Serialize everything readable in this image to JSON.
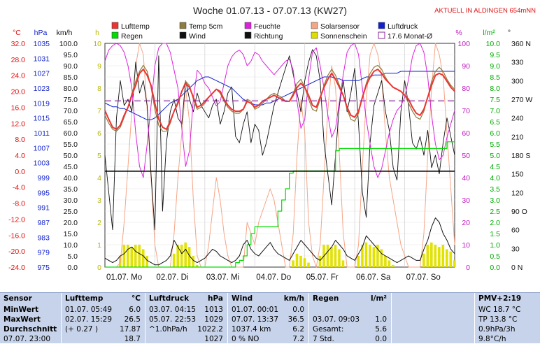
{
  "header": {
    "title": "Woche 01.07.13 - 07.07.13 (KW27)",
    "status": "AKTUELL IN ALDINGEN 654mNN"
  },
  "units": {
    "temp": "°C",
    "hpa": "hPa",
    "kmh": "km/h",
    "h": "h",
    "pct": "%",
    "lm2": "l/m²",
    "deg": "°"
  },
  "legend": [
    {
      "label": "Lufttemp",
      "color": "#ee3333"
    },
    {
      "label": "Temp 5cm",
      "color": "#8d7d3e"
    },
    {
      "label": "Feuchte",
      "color": "#dd22dd"
    },
    {
      "label": "Solarsensor",
      "color": "#f5a585"
    },
    {
      "label": "Luftdruck",
      "color": "#1122cc"
    },
    {
      "label": "Regen",
      "color": "#00dd00"
    },
    {
      "label": "Wind",
      "color": "#111111"
    },
    {
      "label": "Richtung",
      "color": "#111111"
    },
    {
      "label": "Sonnenschein",
      "color": "#dddd00"
    },
    {
      "label": "17.6 Monat-Ø",
      "color": "#8a2a9a"
    }
  ],
  "chart_data": {
    "type": "line",
    "title": "Woche 01.07.13 - 07.07.13 (KW27)",
    "x_ticks": [
      "01.07. Mo",
      "02.07. Di",
      "03.07. Mi",
      "04.07. Do",
      "05.07. Fr",
      "06.07. Sa",
      "07.07. So"
    ],
    "axes": {
      "temp_c": [
        "32.0",
        "28.0",
        "24.0",
        "20.0",
        "16.0",
        "12.0",
        "8.0",
        "4.0",
        "0.0",
        "-4.0",
        "-8.0",
        "-12.0",
        "-16.0",
        "-20.0",
        "-24.0"
      ],
      "pressure_hpa": [
        "1035",
        "1031",
        "1027",
        "1023",
        "1019",
        "1015",
        "1011",
        "1007",
        "1003",
        "999",
        "995",
        "991",
        "987",
        "983",
        "979",
        "975"
      ],
      "wind_kmh": [
        "100.0",
        "95.0",
        "90.0",
        "85.0",
        "80.0",
        "75.0",
        "70.0",
        "65.0",
        "60.0",
        "55.0",
        "50.0",
        "45.0",
        "40.0",
        "35.0",
        "30.0",
        "25.0",
        "20.0",
        "15.0",
        "10.0",
        "5.0",
        "0.0"
      ],
      "sun_h": [
        "10",
        "9",
        "8",
        "7",
        "6",
        "5",
        "4",
        "3",
        "2",
        "1",
        "0"
      ],
      "humidity_pct": [
        "100",
        "90",
        "80",
        "70",
        "60",
        "50",
        "40",
        "30",
        "20",
        "10",
        "0"
      ],
      "rain_lm2": [
        "10.0",
        "9.5",
        "9.0",
        "8.5",
        "8.0",
        "7.5",
        "7.0",
        "6.5",
        "6.0",
        "5.5",
        "5.0",
        "4.5",
        "4.0",
        "3.5",
        "3.0",
        "2.5",
        "2.0",
        "1.5",
        "1.0",
        "0.5",
        "0.0"
      ],
      "direction": [
        "360 N",
        "330",
        "300",
        "270 W",
        "240",
        "210",
        "180 S",
        "150",
        "120",
        "90 O",
        "60",
        "30",
        "0 N"
      ]
    },
    "ranges": {
      "temp_c": [
        -24,
        32
      ],
      "pressure_hpa": [
        975,
        1035
      ],
      "wind_kmh": [
        0,
        100
      ],
      "sun_h": [
        0,
        10
      ],
      "humidity_pct": [
        0,
        100
      ],
      "rain_lm2": [
        0,
        10
      ],
      "direction_deg": [
        0,
        360
      ]
    },
    "series": [
      {
        "name": "Lufttemp",
        "axis": "temp_c",
        "values": [
          15.2,
          13.0,
          11.0,
          10.5,
          11.5,
          14.0,
          16.0,
          19.0,
          21.5,
          24.5,
          25.5,
          24.0,
          21.5,
          17.0,
          13.0,
          11.0,
          10.5,
          12.5,
          15.0,
          17.0,
          20.0,
          22.0,
          21.0,
          18.5,
          16.0,
          16.5,
          17.5,
          18.5,
          19.5,
          20.5,
          20.0,
          18.0,
          16.5,
          15.5,
          15.0,
          15.0,
          15.5,
          17.5,
          17.0,
          16.0,
          16.5,
          17.5,
          18.0,
          18.5,
          19.0,
          18.5,
          18.0,
          17.5,
          17.5,
          19.0,
          21.0,
          22.0,
          21.0,
          19.0,
          16.5,
          16.0,
          18.5,
          21.0,
          23.0,
          24.5,
          23.0,
          21.0,
          19.0,
          16.0,
          14.0,
          13.5,
          15.0,
          18.5,
          21.5,
          23.5,
          25.0,
          25.5,
          24.5,
          23.0,
          22.0,
          21.0,
          20.5,
          20.0,
          19.0,
          18.0,
          16.0,
          14.5,
          14.0,
          15.5,
          18.5,
          21.5,
          24.0,
          24.5,
          24.0,
          22.5,
          21.0,
          20.0
        ]
      },
      {
        "name": "Temp 5cm",
        "axis": "temp_c",
        "values": [
          14.0,
          12.0,
          10.5,
          10.0,
          11.0,
          13.5,
          16.0,
          19.5,
          22.5,
          25.0,
          26.5,
          25.0,
          21.0,
          15.5,
          11.5,
          10.0,
          10.0,
          12.0,
          15.0,
          17.5,
          20.0,
          22.5,
          21.5,
          18.0,
          15.5,
          16.0,
          17.0,
          18.5,
          19.5,
          20.5,
          19.5,
          17.5,
          16.0,
          15.0,
          14.5,
          14.5,
          15.5,
          18.0,
          17.5,
          15.5,
          16.0,
          17.0,
          18.0,
          19.0,
          19.5,
          19.0,
          18.5,
          17.5,
          17.5,
          19.5,
          22.0,
          23.0,
          21.0,
          18.0,
          15.5,
          15.0,
          18.0,
          21.5,
          24.0,
          25.5,
          24.0,
          21.5,
          19.0,
          15.5,
          13.0,
          12.5,
          14.5,
          18.5,
          22.0,
          24.5,
          26.0,
          26.5,
          25.5,
          23.5,
          22.0,
          21.0,
          20.5,
          20.0,
          19.0,
          17.0,
          15.0,
          13.5,
          13.0,
          15.0,
          18.5,
          22.5,
          25.0,
          26.0,
          25.0,
          23.0,
          21.5,
          20.5
        ]
      },
      {
        "name": "Feuchte",
        "axis": "humidity_pct",
        "values": [
          92,
          97,
          99,
          100,
          99,
          96,
          90,
          80,
          60,
          45,
          40,
          55,
          72,
          90,
          98,
          100,
          100,
          96,
          88,
          80,
          62,
          45,
          52,
          75,
          88,
          86,
          82,
          80,
          76,
          72,
          74,
          82,
          90,
          94,
          96,
          97,
          95,
          90,
          92,
          96,
          95,
          92,
          90,
          88,
          86,
          88,
          90,
          92,
          93,
          88,
          74,
          62,
          66,
          84,
          96,
          98,
          90,
          80,
          68,
          58,
          62,
          74,
          86,
          96,
          99,
          100,
          95,
          80,
          66,
          55,
          45,
          40,
          44,
          52,
          60,
          66,
          70,
          72,
          76,
          84,
          94,
          99,
          100,
          96,
          85,
          68,
          55,
          48,
          50,
          58,
          64,
          70
        ]
      },
      {
        "name": "Solarsensor",
        "axis": "humidity_pct",
        "values": [
          0,
          0,
          0,
          0,
          2,
          20,
          45,
          70,
          90,
          100,
          95,
          70,
          40,
          10,
          0,
          0,
          0,
          0,
          15,
          40,
          60,
          80,
          65,
          30,
          5,
          0,
          0,
          10,
          25,
          40,
          30,
          15,
          5,
          0,
          0,
          0,
          0,
          20,
          15,
          10,
          20,
          25,
          30,
          35,
          30,
          20,
          10,
          0,
          0,
          15,
          50,
          75,
          60,
          20,
          5,
          0,
          10,
          40,
          70,
          90,
          80,
          50,
          15,
          0,
          0,
          0,
          10,
          45,
          75,
          95,
          100,
          95,
          85,
          60,
          40,
          30,
          20,
          10,
          5,
          0,
          0,
          0,
          0,
          15,
          50,
          80,
          100,
          95,
          85,
          60,
          35,
          10
        ]
      },
      {
        "name": "Luftdruck",
        "axis": "pressure_hpa",
        "values": [
          1019,
          1018.5,
          1018,
          1018,
          1017.5,
          1017.5,
          1017,
          1016.5,
          1016,
          1015.5,
          1015,
          1014.5,
          1014.5,
          1015,
          1016,
          1017,
          1018,
          1019,
          1019.5,
          1020,
          1021,
          1022,
          1023,
          1024,
          1025,
          1025.5,
          1026,
          1026,
          1025.5,
          1025,
          1024.5,
          1024,
          1023.5,
          1023,
          1022,
          1021,
          1020,
          1019.5,
          1019,
          1018.5,
          1018.5,
          1018.5,
          1019,
          1019,
          1019.5,
          1020,
          1020.5,
          1021,
          1021.5,
          1022,
          1022.5,
          1023,
          1023.5,
          1024,
          1024.5,
          1025,
          1025.5,
          1026,
          1026,
          1026,
          1025.5,
          1025.5,
          1025,
          1025,
          1025,
          1025,
          1025,
          1025.5,
          1026,
          1026,
          1026.5,
          1026.5,
          1026.5,
          1027,
          1027,
          1027,
          1027,
          1027.5,
          1027.5,
          1027.5,
          1027.5,
          1027.5,
          1027.5,
          1027.5,
          1027.5,
          1027.5,
          1027.5,
          1027.5,
          1027.5,
          1027.5,
          1027.5,
          1027.5
        ]
      },
      {
        "name": "Wind",
        "axis": "wind_kmh",
        "values": [
          4,
          3,
          2,
          3,
          5,
          6,
          8,
          9,
          7,
          6,
          5,
          3,
          2,
          1,
          1,
          2,
          3,
          5,
          12,
          9,
          6,
          8,
          5,
          3,
          2,
          3,
          4,
          6,
          8,
          7,
          5,
          4,
          3,
          2,
          3,
          5,
          10,
          12,
          8,
          6,
          5,
          7,
          9,
          11,
          8,
          6,
          5,
          4,
          3,
          6,
          9,
          12,
          10,
          8,
          6,
          4,
          3,
          5,
          7,
          9,
          12,
          10,
          8,
          5,
          4,
          3,
          6,
          9,
          14,
          12,
          10,
          8,
          6,
          5,
          4,
          3,
          2,
          3,
          4,
          5,
          4,
          3,
          3,
          8,
          12,
          18,
          22,
          20,
          15,
          12,
          8,
          6
        ]
      },
      {
        "name": "Richtung",
        "axis": "direction_deg",
        "values": [
          180,
          120,
          60,
          240,
          300,
          260,
          270,
          250,
          330,
          280,
          300,
          260,
          150,
          60,
          340,
          90,
          200,
          250,
          270,
          240,
          230,
          300,
          270,
          250,
          280,
          260,
          250,
          240,
          260,
          270,
          230,
          250,
          280,
          290,
          210,
          200,
          230,
          250,
          200,
          230,
          220,
          180,
          200,
          230,
          260,
          280,
          300,
          320,
          340,
          310,
          280,
          250,
          300,
          330,
          350,
          340,
          300,
          200,
          150,
          100,
          180,
          260,
          300,
          250,
          280,
          320,
          230,
          120,
          80,
          200,
          260,
          280,
          300,
          250,
          220,
          160,
          140,
          250,
          300,
          260,
          200,
          190,
          210,
          180,
          220,
          160,
          180,
          150,
          200,
          240,
          210,
          180
        ]
      },
      {
        "name": "Regen",
        "axis": "rain_lm2",
        "values": [
          0,
          0,
          0,
          0,
          0,
          0,
          0,
          0,
          0,
          0,
          0,
          0,
          0,
          0,
          0,
          0,
          0,
          0,
          0,
          0,
          0,
          0,
          0,
          0,
          0,
          0,
          0,
          0,
          0,
          0,
          0,
          0,
          0,
          0,
          0.2,
          0.3,
          0.5,
          1.0,
          1.5,
          1.8,
          1.8,
          1.8,
          1.8,
          1.8,
          1.8,
          2.5,
          3.0,
          3.5,
          4.2,
          4.3,
          4.3,
          4.3,
          4.3,
          4.3,
          4.3,
          4.3,
          4.3,
          4.3,
          4.3,
          4.3,
          5.2,
          5.3,
          5.3,
          5.3,
          5.3,
          5.3,
          5.3,
          5.3,
          5.3,
          5.3,
          5.3,
          5.3,
          5.3,
          5.3,
          5.3,
          5.3,
          5.3,
          5.3,
          5.3,
          5.3,
          5.3,
          5.3,
          5.3,
          5.3,
          5.3,
          5.3,
          5.3,
          5.3,
          5.3,
          5.6,
          5.6,
          5.6
        ]
      }
    ],
    "sunshine_h": [
      0,
      0,
      0,
      0,
      0.5,
      1.0,
      1.0,
      0.9,
      1.0,
      1.0,
      0.8,
      0.5,
      0,
      0,
      0,
      0,
      0,
      0,
      0.6,
      1.0,
      1.0,
      1.1,
      0.9,
      0.5,
      0.1,
      0,
      0,
      0,
      0,
      0,
      0,
      0,
      0,
      0,
      0,
      0,
      0,
      0,
      0,
      0,
      0,
      0,
      0,
      0,
      0,
      0,
      0,
      0,
      0,
      0.3,
      0.6,
      0.5,
      0.4,
      0.2,
      0,
      0,
      0.5,
      1.0,
      1.0,
      0.9,
      1.0,
      0.8,
      0.3,
      0,
      0,
      0,
      0.5,
      1.0,
      1.1,
      1.0,
      0.9,
      1.0,
      0.8,
      0.5,
      0.3,
      0.1,
      0,
      0,
      0,
      0,
      0,
      0,
      0,
      0.6,
      1.0,
      1.1,
      1.0,
      0.9,
      1.0,
      0.8,
      0.7,
      0.3
    ],
    "reference_lines": [
      {
        "name": "17.6 Monat-Ø",
        "axis": "temp_c",
        "value": 17.6
      },
      {
        "axis": "temp_c",
        "value": 0.0
      }
    ]
  },
  "table": {
    "sensor": {
      "header": "Sensor",
      "rows": [
        "MinWert",
        "MaxWert",
        "Durchschnitt",
        "07.07. 23:00"
      ]
    },
    "lufttemp": {
      "header": "Lufttemp",
      "unit": "°C",
      "rows": [
        {
          "l": "01.07.  05:49",
          "r": "6.0"
        },
        {
          "l": "02.07.  15:29",
          "r": "26.5"
        },
        {
          "l": "(+ 0.27 )",
          "r": "17.87"
        },
        {
          "l": "",
          "r": "18.7"
        }
      ]
    },
    "luftdruck": {
      "header": "Luftdruck",
      "unit": "hPa",
      "rows": [
        {
          "l": "03.07.  04:15",
          "r": "1013"
        },
        {
          "l": "05.07.  22:53",
          "r": "1029"
        },
        {
          "l": "^1.0hPa/h",
          "r": "1022.2"
        },
        {
          "l": "",
          "r": "1027"
        }
      ]
    },
    "wind": {
      "header": "Wind",
      "unit": "km/h",
      "rows": [
        {
          "l": "01.07.  00:01",
          "r": "0.0"
        },
        {
          "l": "07.07.  13:37",
          "r": "36.5"
        },
        {
          "l": "1037.4 km",
          "r": "6.2"
        },
        {
          "l": "0 % NO",
          "r": "7.2"
        }
      ]
    },
    "regen": {
      "header": "Regen",
      "unit": "l/m²",
      "rows": [
        {
          "l": "",
          "r": ""
        },
        {
          "l": "03.07.  09:03",
          "r": "1.0"
        },
        {
          "l": "Gesamt:",
          "r": "5.6"
        },
        {
          "l": "7 Std.",
          "r": "0.0"
        }
      ]
    },
    "pmv": {
      "header": "PMV+2:19",
      "rows": [
        "WC 18.7 °C",
        "TP 13.8 °C",
        "0.9hPa/3h",
        "9.8°C/h"
      ]
    }
  }
}
